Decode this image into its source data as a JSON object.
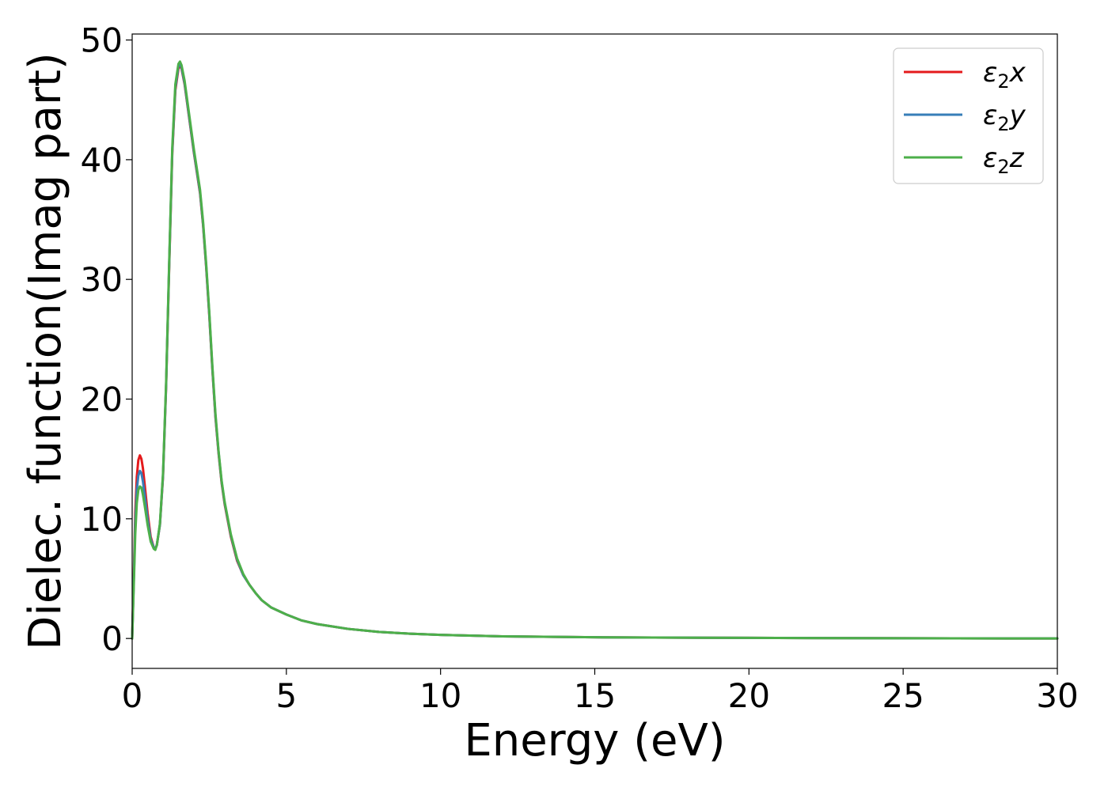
{
  "chart_data": {
    "type": "line",
    "title": "",
    "xlabel": "Energy (eV)",
    "ylabel": "Dielec. function(Imag part)",
    "xlim": [
      0,
      30
    ],
    "ylim": [
      -2.5,
      50.5
    ],
    "xticks": [
      0,
      5,
      10,
      15,
      20,
      25,
      30
    ],
    "yticks": [
      0,
      10,
      20,
      30,
      40,
      50
    ],
    "grid": false,
    "legend_position": "top-right",
    "series": [
      {
        "name": "ε2x",
        "symbol": "ε",
        "sub": "2",
        "comp": "x",
        "color": "#e41a1c",
        "x": [
          0,
          0.05,
          0.1,
          0.15,
          0.2,
          0.25,
          0.3,
          0.35,
          0.4,
          0.5,
          0.6,
          0.7,
          0.75,
          0.8,
          0.9,
          1.0,
          1.1,
          1.2,
          1.3,
          1.4,
          1.5,
          1.55,
          1.6,
          1.7,
          1.8,
          1.9,
          2.0,
          2.1,
          2.2,
          2.3,
          2.4,
          2.5,
          2.6,
          2.7,
          2.8,
          2.9,
          3.0,
          3.2,
          3.4,
          3.6,
          3.8,
          4.0,
          4.2,
          4.5,
          5.0,
          5.5,
          6.0,
          7.0,
          8.0,
          9.0,
          10.0,
          12.0,
          15.0,
          20.0,
          25.0,
          30.0
        ],
        "y": [
          0.0,
          5.0,
          10.5,
          13.5,
          14.9,
          15.3,
          15.0,
          14.2,
          13.0,
          10.5,
          8.5,
          7.6,
          7.5,
          7.8,
          9.5,
          13.5,
          21.0,
          31.0,
          40.5,
          45.8,
          47.6,
          47.9,
          47.6,
          46.3,
          44.4,
          42.5,
          40.6,
          38.9,
          37.2,
          34.5,
          31.0,
          27.0,
          22.5,
          18.5,
          15.5,
          13.0,
          11.2,
          8.5,
          6.5,
          5.3,
          4.5,
          3.8,
          3.2,
          2.6,
          2.0,
          1.5,
          1.2,
          0.8,
          0.55,
          0.4,
          0.3,
          0.18,
          0.1,
          0.05,
          0.02,
          0.0
        ]
      },
      {
        "name": "ε2y",
        "symbol": "ε",
        "sub": "2",
        "comp": "y",
        "color": "#377eb8",
        "x": [
          0,
          0.05,
          0.1,
          0.15,
          0.2,
          0.25,
          0.3,
          0.35,
          0.4,
          0.5,
          0.6,
          0.7,
          0.75,
          0.8,
          0.9,
          1.0,
          1.1,
          1.2,
          1.3,
          1.4,
          1.5,
          1.55,
          1.6,
          1.7,
          1.8,
          1.9,
          2.0,
          2.1,
          2.2,
          2.3,
          2.4,
          2.5,
          2.6,
          2.7,
          2.8,
          2.9,
          3.0,
          3.2,
          3.4,
          3.6,
          3.8,
          4.0,
          4.2,
          4.5,
          5.0,
          5.5,
          6.0,
          7.0,
          8.0,
          9.0,
          10.0,
          12.0,
          15.0,
          20.0,
          25.0,
          30.0
        ],
        "y": [
          0.0,
          4.6,
          9.6,
          12.4,
          13.6,
          14.0,
          13.8,
          13.1,
          12.1,
          10.0,
          8.3,
          7.6,
          7.5,
          7.8,
          9.5,
          13.6,
          21.1,
          31.2,
          40.7,
          46.0,
          47.8,
          48.0,
          47.7,
          46.4,
          44.5,
          42.6,
          40.7,
          39.0,
          37.3,
          34.6,
          31.1,
          27.1,
          22.6,
          18.6,
          15.6,
          13.1,
          11.3,
          8.6,
          6.6,
          5.3,
          4.5,
          3.8,
          3.2,
          2.6,
          2.0,
          1.5,
          1.2,
          0.8,
          0.55,
          0.4,
          0.3,
          0.18,
          0.1,
          0.05,
          0.02,
          0.0
        ]
      },
      {
        "name": "ε2z",
        "symbol": "ε",
        "sub": "2",
        "comp": "z",
        "color": "#4daf4a",
        "x": [
          0,
          0.05,
          0.1,
          0.15,
          0.2,
          0.25,
          0.3,
          0.35,
          0.4,
          0.5,
          0.6,
          0.7,
          0.75,
          0.8,
          0.9,
          1.0,
          1.1,
          1.2,
          1.3,
          1.4,
          1.5,
          1.55,
          1.6,
          1.7,
          1.8,
          1.9,
          2.0,
          2.1,
          2.2,
          2.3,
          2.4,
          2.5,
          2.6,
          2.7,
          2.8,
          2.9,
          3.0,
          3.2,
          3.4,
          3.6,
          3.8,
          4.0,
          4.2,
          4.5,
          5.0,
          5.5,
          6.0,
          7.0,
          8.0,
          9.0,
          10.0,
          12.0,
          15.0,
          20.0,
          25.0,
          30.0
        ],
        "y": [
          0.0,
          4.2,
          8.7,
          11.3,
          12.4,
          12.7,
          12.6,
          12.0,
          11.2,
          9.5,
          8.1,
          7.5,
          7.4,
          7.8,
          9.6,
          13.8,
          21.3,
          31.4,
          41.0,
          46.3,
          48.0,
          48.2,
          47.9,
          46.6,
          44.7,
          42.8,
          40.9,
          39.2,
          37.5,
          34.8,
          31.3,
          27.3,
          22.8,
          18.8,
          15.7,
          13.2,
          11.4,
          8.7,
          6.7,
          5.4,
          4.5,
          3.8,
          3.2,
          2.6,
          2.0,
          1.5,
          1.2,
          0.8,
          0.55,
          0.4,
          0.3,
          0.18,
          0.1,
          0.05,
          0.02,
          0.0
        ]
      }
    ]
  }
}
